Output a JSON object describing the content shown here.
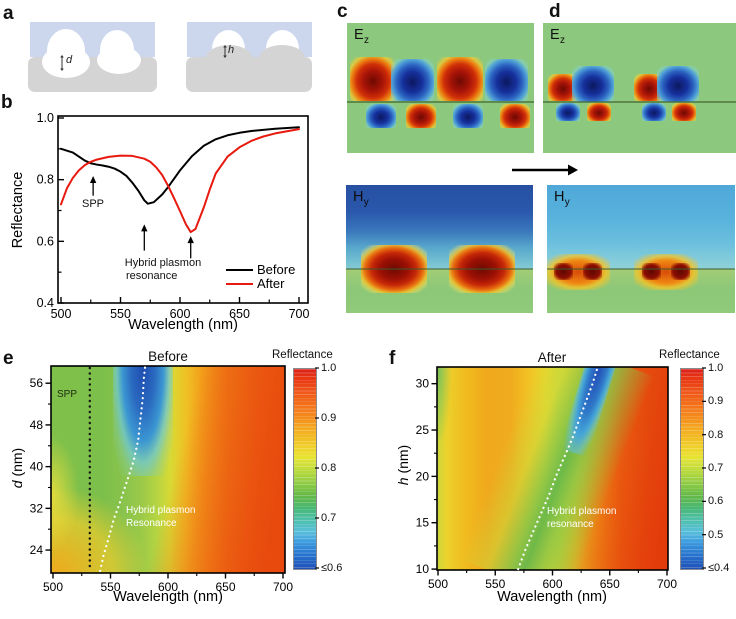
{
  "panels": {
    "a_label": "a",
    "b_label": "b",
    "c_label": "c",
    "d_label": "d",
    "e_label": "e",
    "f_label": "f"
  },
  "panel_a": {
    "left": {
      "gap_label": "d"
    },
    "right": {
      "height_label": "h"
    },
    "colors": {
      "top_layer": "#ccd7ee",
      "substrate": "#d4d4d4",
      "particle": "#ffffff"
    }
  },
  "panel_c": {
    "top_field": {
      "base": "E",
      "sub": "z"
    },
    "bottom_field": {
      "base": "H",
      "sub": "y"
    }
  },
  "panel_d": {
    "top_field": {
      "base": "E",
      "sub": "z"
    },
    "bottom_field": {
      "base": "H",
      "sub": "y"
    }
  },
  "chart_data": [
    {
      "id": "panel-b",
      "type": "line",
      "xlabel": "Wavelength (nm)",
      "ylabel": "Reflectance",
      "xlim": [
        500,
        700
      ],
      "ylim": [
        0.4,
        1.0
      ],
      "x_ticks": [
        500,
        550,
        600,
        650,
        700
      ],
      "x_minor_ticks": [
        525,
        575,
        625,
        675
      ],
      "y_ticks": [
        1.0,
        0.8,
        0.6,
        0.4
      ],
      "y_tick_labels": [
        "1.0",
        "0.8",
        "0.6",
        "0.4"
      ],
      "y_minor_ticks": [
        0.9,
        0.7,
        0.5
      ],
      "legend": {
        "position": "bottom-right",
        "entries": [
          {
            "label": "Before",
            "color": "#000000"
          },
          {
            "label": "After",
            "color": "#e8190f"
          }
        ]
      },
      "series": [
        {
          "name": "Before",
          "color": "#000000",
          "x": [
            500,
            510,
            520,
            525,
            530,
            535,
            540,
            545,
            550,
            555,
            560,
            565,
            570,
            573,
            578,
            585,
            590,
            600,
            610,
            620,
            630,
            640,
            650,
            660,
            680,
            700
          ],
          "y": [
            0.9,
            0.888,
            0.862,
            0.853,
            0.849,
            0.846,
            0.842,
            0.836,
            0.826,
            0.812,
            0.79,
            0.764,
            0.733,
            0.722,
            0.727,
            0.752,
            0.776,
            0.83,
            0.876,
            0.91,
            0.931,
            0.944,
            0.952,
            0.958,
            0.965,
            0.97
          ]
        },
        {
          "name": "After",
          "color": "#e8190f",
          "x": [
            500,
            505,
            510,
            515,
            520,
            525,
            530,
            540,
            550,
            560,
            570,
            575,
            580,
            585,
            590,
            595,
            600,
            605,
            609,
            613,
            620,
            625,
            630,
            640,
            650,
            660,
            670,
            680,
            700
          ],
          "y": [
            0.72,
            0.772,
            0.806,
            0.83,
            0.847,
            0.858,
            0.865,
            0.874,
            0.878,
            0.877,
            0.868,
            0.858,
            0.84,
            0.815,
            0.78,
            0.74,
            0.698,
            0.655,
            0.63,
            0.64,
            0.71,
            0.768,
            0.82,
            0.875,
            0.905,
            0.926,
            0.94,
            0.95,
            0.964
          ]
        }
      ],
      "annotations": {
        "spp": {
          "label": "SPP",
          "arrow_x_nm": 527,
          "arrow_y_from": 0.748,
          "arrow_y_to": 0.812
        },
        "hybrid": {
          "label_line1": "Hybrid plasmon",
          "label_line2": "resonance",
          "text_x_nm": 586,
          "text_y": 0.545,
          "arrow1_x_nm": 570,
          "arrow1_y_from": 0.57,
          "arrow1_y_to": 0.655,
          "arrow2_x_nm": 609,
          "arrow2_y_from": 0.545,
          "arrow2_y_to": 0.617
        }
      }
    },
    {
      "id": "panel-e",
      "type": "heatmap",
      "title": "Before",
      "xlabel": "Wavelength (nm)",
      "ylabel_italic": "d",
      "ylabel_unit": " (nm)",
      "xlim": [
        500,
        700
      ],
      "ylim": [
        20,
        59
      ],
      "x_ticks": [
        500,
        550,
        600,
        650,
        700
      ],
      "x_minor_ticks": [
        525,
        575,
        625,
        675
      ],
      "y_ticks": [
        56,
        48,
        40,
        32,
        24
      ],
      "y_minor_ticks": [
        52,
        44,
        36,
        28
      ],
      "colorbar": {
        "title": "Reflectance",
        "tick_labels": [
          "1.0",
          "0.9",
          "0.8",
          "0.7",
          "≤0.6"
        ],
        "range": [
          1.0,
          0.6
        ]
      },
      "spp_line": {
        "label": "SPP",
        "x_nm": 532,
        "style": "black-dotted"
      },
      "resonance": {
        "label_line1": "Hybrid plasmon",
        "label_line2": "Resonance",
        "style": "white-dotted",
        "points_nm_vs_d": [
          [
            541,
            20
          ],
          [
            544,
            23
          ],
          [
            548,
            26
          ],
          [
            553,
            30
          ],
          [
            558,
            33
          ],
          [
            564,
            37
          ],
          [
            570,
            41
          ],
          [
            574,
            45
          ],
          [
            576,
            49
          ],
          [
            578,
            53
          ],
          [
            579,
            57
          ],
          [
            580,
            59
          ]
        ]
      },
      "low_reflectance_region": {
        "wavelength_nm": [
          560,
          597
        ],
        "d_nm": [
          46,
          59
        ],
        "value": "≤0.6"
      }
    },
    {
      "id": "panel-f",
      "type": "heatmap",
      "title": "After",
      "xlabel": "Wavelength (nm)",
      "ylabel_italic": "h",
      "ylabel_unit": " (nm)",
      "xlim": [
        500,
        700
      ],
      "ylim": [
        10,
        32
      ],
      "x_ticks": [
        500,
        550,
        600,
        650,
        700
      ],
      "x_minor_ticks": [
        525,
        575,
        625,
        675
      ],
      "y_ticks": [
        30,
        25,
        20,
        15,
        10
      ],
      "y_minor_ticks": [
        27.5,
        22.5,
        17.5,
        12.5
      ],
      "colorbar": {
        "title": "Reflectance",
        "tick_labels": [
          "1.0",
          "0.9",
          "0.8",
          "0.7",
          "0.6",
          "0.5",
          "≤0.4"
        ],
        "range": [
          1.0,
          0.4
        ]
      },
      "resonance": {
        "label_line1": "Hybrid plasmon",
        "label_line2": "resonance",
        "style": "white-dotted",
        "points_nm_vs_h": [
          [
            570,
            10
          ],
          [
            576,
            12
          ],
          [
            583,
            14
          ],
          [
            590,
            16
          ],
          [
            597,
            18
          ],
          [
            603,
            20
          ],
          [
            610,
            22
          ],
          [
            617,
            24
          ],
          [
            623,
            26
          ],
          [
            629,
            28
          ],
          [
            635,
            30
          ],
          [
            640,
            32
          ]
        ]
      },
      "low_reflectance_region": {
        "wavelength_nm": [
          614,
          646
        ],
        "h_nm": [
          26,
          32
        ],
        "value": "≤0.4"
      }
    }
  ]
}
